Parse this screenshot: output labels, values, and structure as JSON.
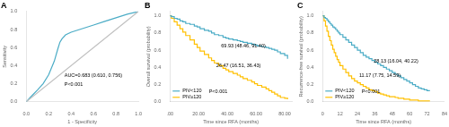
{
  "chart_data": [
    {
      "type": "line",
      "title": "A",
      "xlabel": "1 - Specificity",
      "ylabel": "Sensitivity",
      "series": [
        {
          "color": "#C0C0C0",
          "x": [
            0.0,
            1.0
          ],
          "values": [
            0.0,
            1.0
          ]
        },
        {
          "color": "#4BACC6",
          "x": [
            0.0,
            0.03,
            0.06,
            0.1,
            0.15,
            0.2,
            0.25,
            0.28,
            0.3,
            0.32,
            0.35,
            0.4,
            0.5,
            0.6,
            0.7,
            0.8,
            0.9,
            1.0
          ],
          "values": [
            0.0,
            0.04,
            0.08,
            0.13,
            0.2,
            0.3,
            0.45,
            0.58,
            0.66,
            0.7,
            0.74,
            0.77,
            0.81,
            0.85,
            0.89,
            0.93,
            0.97,
            1.0
          ]
        }
      ],
      "xlim": [
        0.0,
        1.0
      ],
      "ylim": [
        0.0,
        1.0
      ],
      "xticks": [
        {
          "value": 0.0,
          "label": "0.0"
        },
        0.2,
        0.4,
        0.6,
        0.8,
        {
          "value": 1.0,
          "label": "1.0"
        }
      ],
      "yticks": [
        {
          "value": 0.0,
          "label": "0.0"
        },
        0.2,
        0.4,
        0.6,
        0.8,
        {
          "value": 1.0,
          "label": "1.0"
        }
      ],
      "annotations": [
        "AUC=0.683 (0.610, 0.756)",
        "P<0.001"
      ],
      "grid": false
    },
    {
      "type": "step",
      "title": "B",
      "xlabel": "Time since RFA (months)",
      "ylabel": "Overall survival (probability)",
      "series": [
        {
          "name": "PIV<120",
          "color": "#4BACC6",
          "x": [
            0,
            1,
            3,
            5,
            7,
            9,
            11,
            14,
            17,
            19,
            21,
            24,
            27,
            29,
            31,
            34,
            37,
            39,
            41,
            44,
            47,
            49,
            51,
            54,
            57,
            59,
            61,
            64,
            67,
            69,
            71,
            73,
            75,
            77,
            80,
            82
          ],
          "values": [
            1.0,
            0.99,
            0.97,
            0.96,
            0.94,
            0.93,
            0.91,
            0.9,
            0.88,
            0.87,
            0.85,
            0.83,
            0.82,
            0.8,
            0.78,
            0.77,
            0.75,
            0.74,
            0.73,
            0.72,
            0.71,
            0.7,
            0.69,
            0.68,
            0.67,
            0.66,
            0.65,
            0.64,
            0.63,
            0.62,
            0.61,
            0.6,
            0.58,
            0.56,
            0.54,
            0.5
          ]
        },
        {
          "name": "PIV≥120",
          "color": "#FFC000",
          "x": [
            0,
            1,
            3,
            5,
            7,
            9,
            11,
            14,
            17,
            19,
            21,
            24,
            27,
            29,
            31,
            34,
            37,
            39,
            41,
            44,
            47,
            49,
            51,
            54,
            57,
            59,
            61,
            64,
            67,
            69,
            71,
            73,
            75,
            77,
            80,
            82
          ],
          "values": [
            1.0,
            0.97,
            0.93,
            0.89,
            0.85,
            0.81,
            0.77,
            0.72,
            0.67,
            0.63,
            0.59,
            0.55,
            0.51,
            0.48,
            0.45,
            0.42,
            0.39,
            0.37,
            0.35,
            0.33,
            0.31,
            0.29,
            0.27,
            0.25,
            0.23,
            0.21,
            0.19,
            0.17,
            0.15,
            0.13,
            0.11,
            0.09,
            0.07,
            0.05,
            0.04,
            0.03
          ]
        }
      ],
      "xlim": [
        0,
        85
      ],
      "ylim": [
        0.0,
        1.05
      ],
      "xticks": [
        {
          "value": 0,
          "label": ".00"
        },
        {
          "value": 20,
          "label": "20.00"
        },
        {
          "value": 40,
          "label": "40.00"
        },
        {
          "value": 60,
          "label": "60.00"
        },
        {
          "value": 80,
          "label": "80.00"
        }
      ],
      "yticks": [
        {
          "value": 0.0,
          "label": "0.0"
        },
        0.2,
        0.4,
        0.6,
        0.8,
        {
          "value": 1.0,
          "label": "1.0"
        }
      ],
      "annotations": [
        "69.93 (48.46, 91.40)",
        "26.47 (16.51, 36.43)",
        "P<0.001"
      ],
      "legend": "lower left",
      "grid": false
    },
    {
      "type": "step",
      "title": "C",
      "xlabel": "Time since RFA (months)",
      "ylabel": "Recurrence-free survival (probability)",
      "series": [
        {
          "name": "PIV<120",
          "color": "#4BACC6",
          "x": [
            0,
            1,
            2,
            3,
            4,
            5,
            6,
            7,
            8,
            9,
            10,
            11,
            12,
            14,
            16,
            18,
            20,
            22,
            24,
            26,
            28,
            30,
            32,
            34,
            36,
            38,
            40,
            42,
            44,
            46,
            48,
            50,
            52,
            54,
            56,
            58,
            60,
            62,
            64,
            66,
            68,
            70,
            72,
            74
          ],
          "values": [
            1.0,
            0.98,
            0.97,
            0.95,
            0.93,
            0.91,
            0.89,
            0.87,
            0.86,
            0.84,
            0.82,
            0.8,
            0.78,
            0.75,
            0.72,
            0.69,
            0.66,
            0.63,
            0.6,
            0.57,
            0.54,
            0.52,
            0.5,
            0.48,
            0.46,
            0.44,
            0.42,
            0.4,
            0.38,
            0.36,
            0.34,
            0.32,
            0.3,
            0.28,
            0.26,
            0.24,
            0.22,
            0.2,
            0.18,
            0.16,
            0.15,
            0.14,
            0.13,
            0.13
          ]
        },
        {
          "name": "PIV≥120",
          "color": "#FFC000",
          "x": [
            0,
            1,
            2,
            3,
            4,
            5,
            6,
            7,
            8,
            9,
            10,
            11,
            12,
            14,
            16,
            18,
            20,
            22,
            24,
            26,
            28,
            30,
            32,
            34,
            36,
            38,
            40,
            42,
            44,
            46,
            48,
            50,
            52,
            54,
            56,
            58,
            60,
            62,
            64,
            66,
            68,
            70,
            72,
            74
          ],
          "values": [
            1.0,
            0.94,
            0.88,
            0.82,
            0.76,
            0.71,
            0.66,
            0.61,
            0.57,
            0.53,
            0.49,
            0.46,
            0.42,
            0.38,
            0.34,
            0.3,
            0.27,
            0.24,
            0.22,
            0.2,
            0.18,
            0.16,
            0.14,
            0.13,
            0.12,
            0.1,
            0.09,
            0.08,
            0.07,
            0.06,
            0.06,
            0.05,
            0.04,
            0.04,
            0.03,
            0.03,
            0.02,
            0.02,
            0.02,
            0.01,
            0.01,
            0.01,
            0.01,
            0.01
          ]
        }
      ],
      "xlim": [
        0,
        84
      ],
      "ylim": [
        0.0,
        1.05
      ],
      "xticks": [
        0,
        12,
        24,
        36,
        48,
        60,
        72,
        84
      ],
      "yticks": [
        {
          "value": 0.0,
          "label": "0.0"
        },
        0.2,
        0.4,
        0.6,
        0.8,
        {
          "value": 1.0,
          "label": "1.0"
        }
      ],
      "annotations": [
        "28.13 (16.04, 40.22)",
        "11.17 (7.75, 14.59)",
        "P<0.001"
      ],
      "legend": "lower left",
      "grid": false
    }
  ]
}
